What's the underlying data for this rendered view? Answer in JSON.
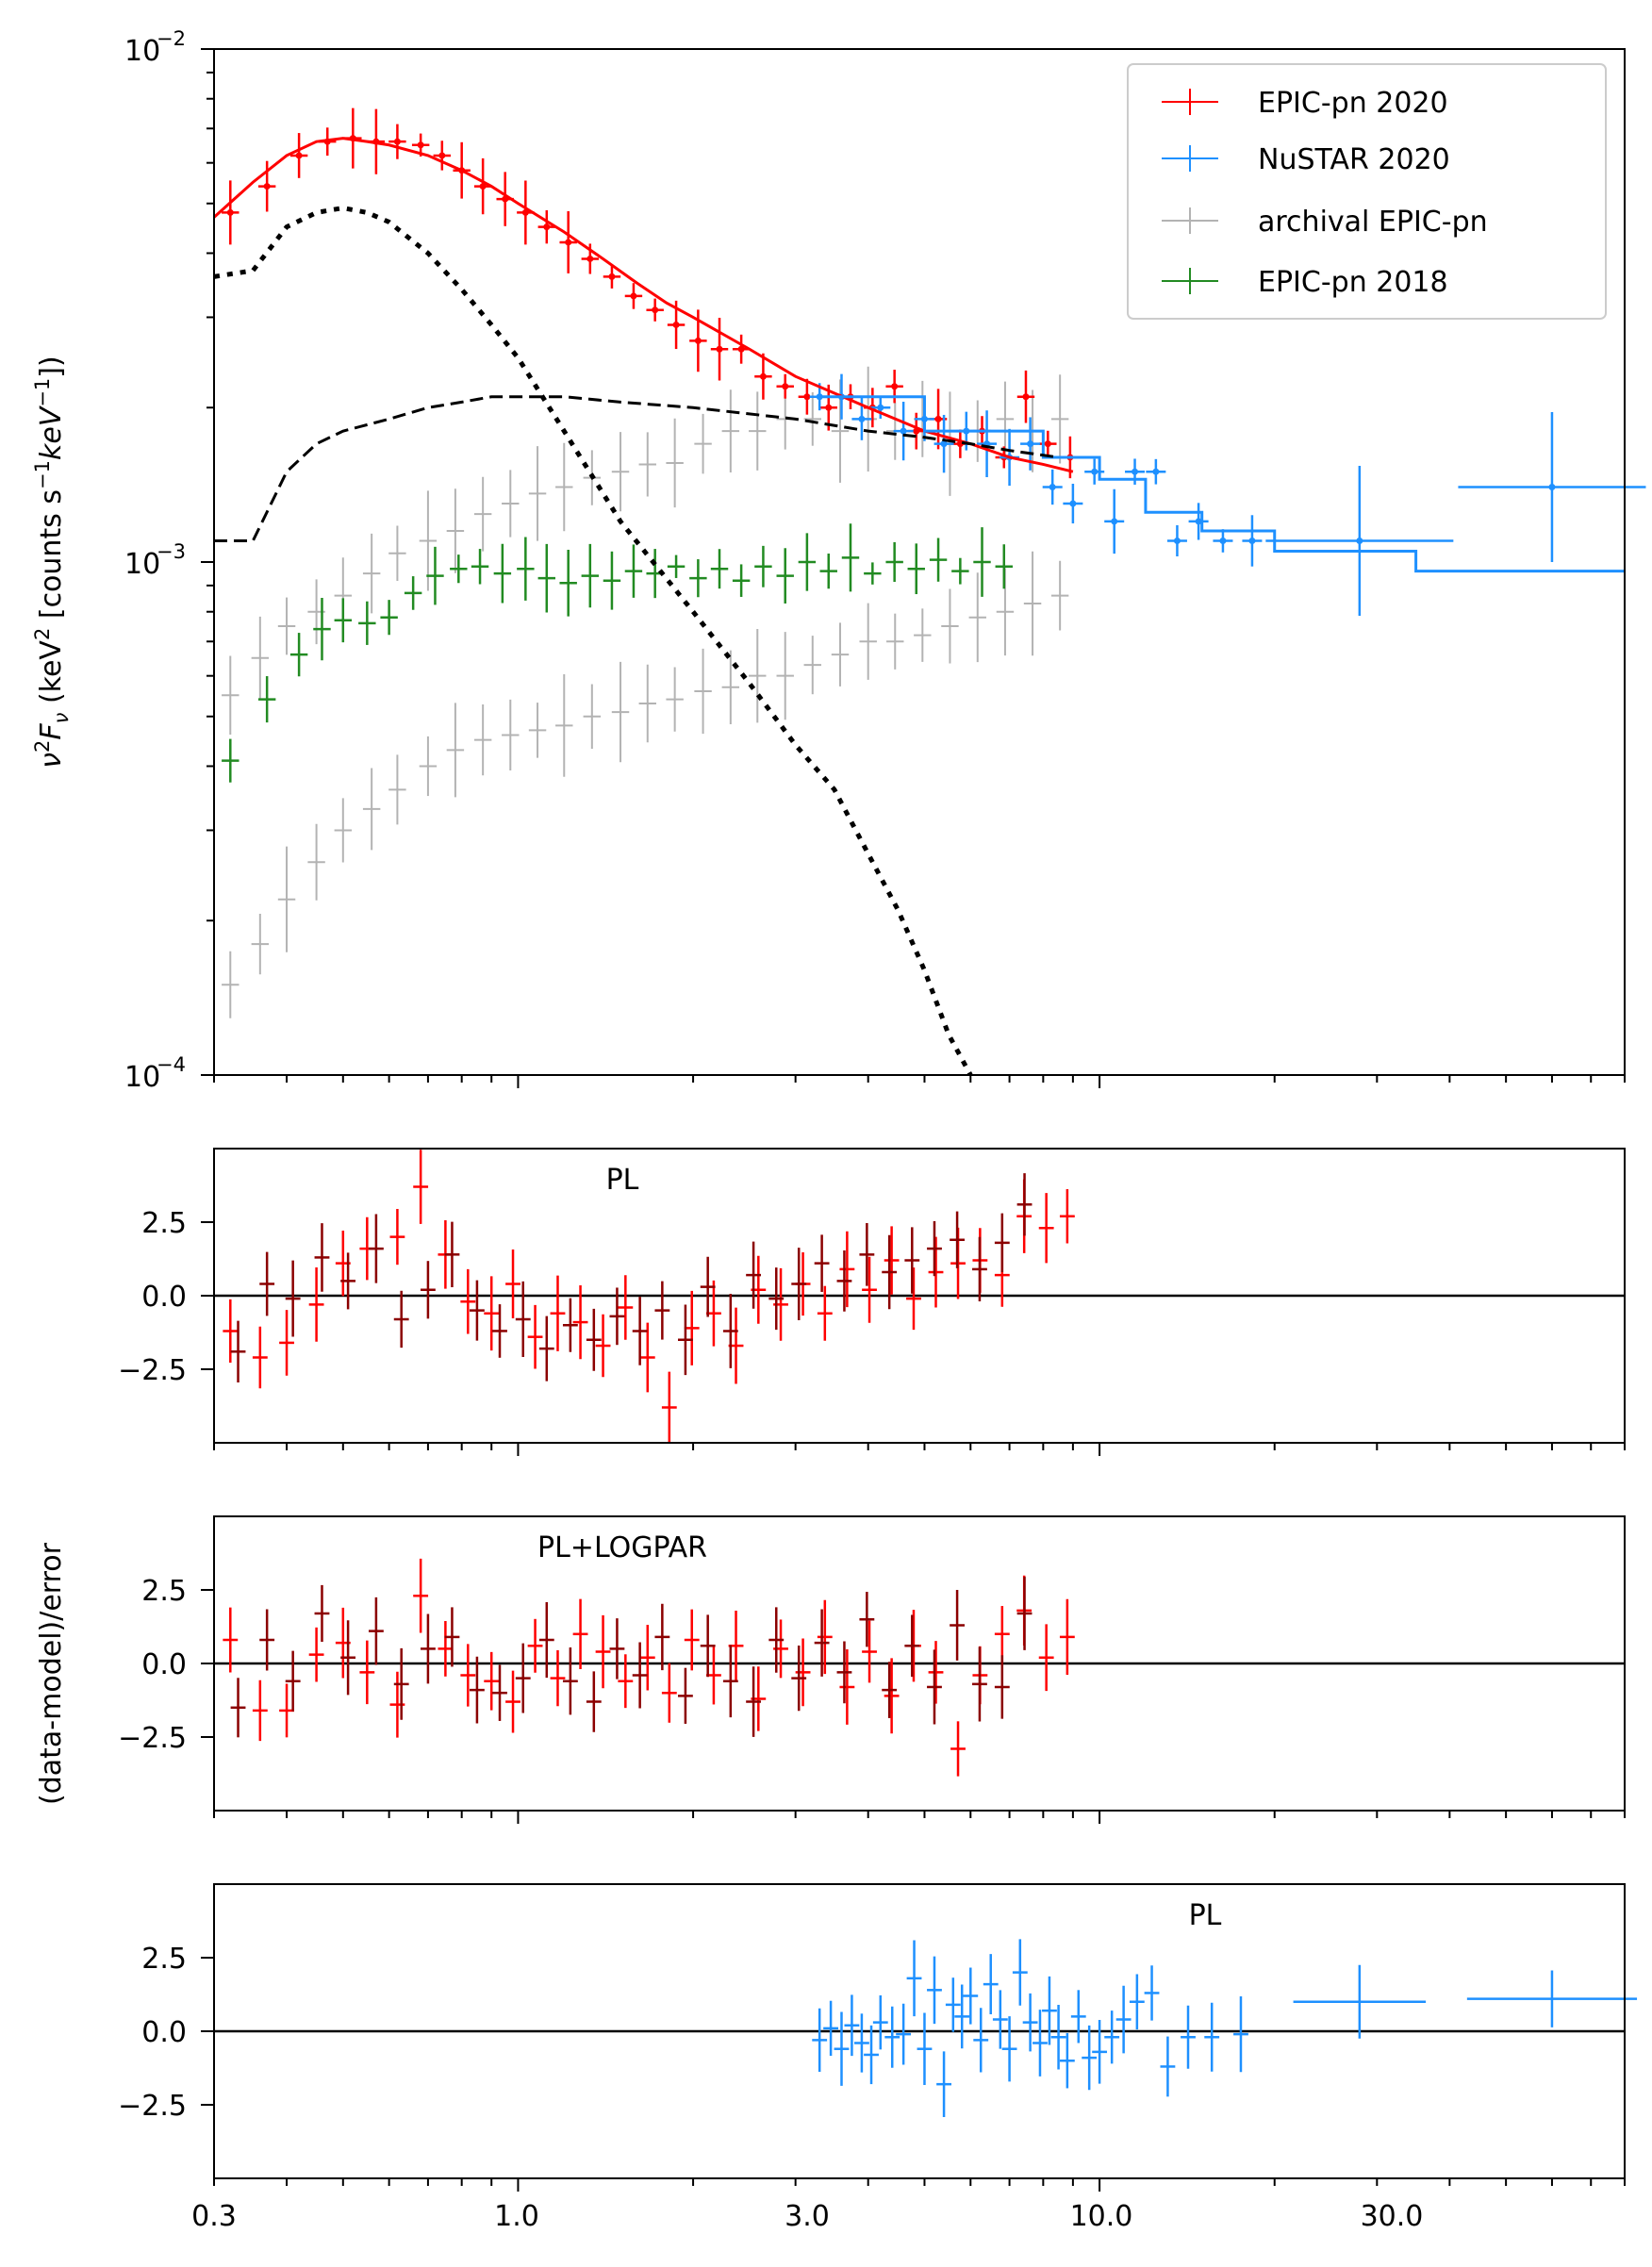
{
  "chart_data": [
    {
      "id": "spectrum",
      "type": "scatter",
      "xscale": "log",
      "yscale": "log",
      "xlim": [
        0.3,
        80
      ],
      "ylim": [
        0.0001,
        0.01
      ],
      "xlabel": "",
      "ylabel_parts": [
        "ν",
        "2",
        "F",
        "ν",
        " (keV",
        "2",
        " [counts s",
        "−1",
        "keV",
        "−1",
        "])"
      ],
      "y_ticks": [
        {
          "value": 0.01,
          "base": "10",
          "exp": "−2"
        },
        {
          "value": 0.001,
          "base": "10",
          "exp": "−3"
        },
        {
          "value": 0.0001,
          "base": "10",
          "exp": "−4"
        }
      ],
      "legend": {
        "position": "top-right",
        "entries": [
          {
            "label": "EPIC-pn 2020",
            "color": "#ff0000"
          },
          {
            "label": "NuSTAR 2020",
            "color": "#1e90ff"
          },
          {
            "label": "archival EPIC-pn",
            "color": "#b3b3b3"
          },
          {
            "label": "EPIC-pn 2018",
            "color": "#228b22"
          }
        ]
      },
      "series": [
        {
          "name": "EPIC-pn 2020",
          "color": "#ff0000",
          "x": [
            0.32,
            0.37,
            0.42,
            0.47,
            0.52,
            0.57,
            0.62,
            0.68,
            0.74,
            0.8,
            0.87,
            0.95,
            1.03,
            1.12,
            1.22,
            1.33,
            1.45,
            1.58,
            1.72,
            1.87,
            2.04,
            2.22,
            2.42,
            2.64,
            2.88,
            3.14,
            3.42,
            3.73,
            4.07,
            4.44,
            4.84,
            5.28,
            5.76,
            6.28,
            6.85,
            7.47,
            8.15,
            8.9
          ],
          "y": [
            0.0048,
            0.0054,
            0.0062,
            0.0066,
            0.0067,
            0.0066,
            0.0066,
            0.0065,
            0.0062,
            0.0058,
            0.0054,
            0.0051,
            0.0048,
            0.0045,
            0.0042,
            0.0039,
            0.0036,
            0.0033,
            0.0031,
            0.0029,
            0.0027,
            0.0026,
            0.0026,
            0.0023,
            0.0022,
            0.0021,
            0.002,
            0.0021,
            0.002,
            0.0022,
            0.0018,
            0.0019,
            0.0017,
            0.0018,
            0.0016,
            0.0021,
            0.0017,
            0.0016
          ]
        },
        {
          "name": "NuSTAR 2020",
          "color": "#1e90ff",
          "x": [
            3.3,
            3.6,
            3.9,
            4.2,
            4.6,
            5.0,
            5.4,
            5.9,
            6.4,
            7.0,
            7.6,
            8.3,
            9.0,
            9.8,
            10.6,
            11.5,
            12.5,
            13.6,
            14.8,
            16.3,
            18.3,
            28,
            60
          ],
          "y": [
            0.0021,
            0.0021,
            0.0019,
            0.002,
            0.0018,
            0.0019,
            0.0017,
            0.0018,
            0.0017,
            0.0016,
            0.0017,
            0.0014,
            0.0013,
            0.0015,
            0.0012,
            0.0015,
            0.0015,
            0.0011,
            0.0012,
            0.0011,
            0.0011,
            0.0011,
            0.0014
          ]
        },
        {
          "name": "archival EPIC-pn",
          "color": "#b3b3b3",
          "x": [
            0.32,
            0.36,
            0.4,
            0.45,
            0.5,
            0.56,
            0.62,
            0.7,
            0.78,
            0.87,
            0.97,
            1.08,
            1.2,
            1.34,
            1.5,
            1.67,
            1.86,
            2.08,
            2.32,
            2.58,
            2.88,
            3.21,
            3.58,
            4.0,
            4.45,
            4.96,
            5.53,
            6.17,
            6.88,
            7.67,
            8.55,
            0.32,
            0.36,
            0.4,
            0.45,
            0.5,
            0.56,
            0.62,
            0.7,
            0.78,
            0.87,
            0.97,
            1.08,
            1.2,
            1.34,
            1.5,
            1.67,
            1.86,
            2.08,
            2.32,
            2.58,
            2.88,
            3.21,
            3.58,
            4.0,
            4.45,
            4.96,
            5.53,
            6.17,
            6.88,
            7.67,
            8.55
          ],
          "y": [
            0.00055,
            0.00065,
            0.00075,
            0.0008,
            0.00086,
            0.00095,
            0.00104,
            0.0011,
            0.00115,
            0.00124,
            0.0013,
            0.00136,
            0.0014,
            0.00146,
            0.0015,
            0.00155,
            0.00156,
            0.0017,
            0.0018,
            0.0018,
            0.0019,
            0.0019,
            0.0018,
            0.0019,
            0.0018,
            0.0019,
            0.0017,
            0.0018,
            0.0019,
            0.0018,
            0.0019,
            0.00015,
            0.00018,
            0.00022,
            0.00026,
            0.0003,
            0.00033,
            0.00036,
            0.0004,
            0.00043,
            0.00045,
            0.00046,
            0.00047,
            0.00048,
            0.0005,
            0.00051,
            0.00053,
            0.00054,
            0.00056,
            0.00057,
            0.0006,
            0.0006,
            0.00063,
            0.00066,
            0.0007,
            0.0007,
            0.00072,
            0.00075,
            0.00078,
            0.0008,
            0.00083,
            0.00086
          ]
        },
        {
          "name": "EPIC-pn 2018",
          "color": "#228b22",
          "x": [
            0.32,
            0.37,
            0.42,
            0.46,
            0.5,
            0.55,
            0.6,
            0.66,
            0.72,
            0.79,
            0.86,
            0.94,
            1.03,
            1.12,
            1.22,
            1.33,
            1.45,
            1.58,
            1.72,
            1.87,
            2.04,
            2.22,
            2.42,
            2.64,
            2.88,
            3.14,
            3.42,
            3.73,
            4.07,
            4.44,
            4.84,
            5.28,
            5.76,
            6.28,
            6.85
          ],
          "y": [
            0.00041,
            0.00054,
            0.00066,
            0.00074,
            0.00077,
            0.00076,
            0.00078,
            0.00087,
            0.00094,
            0.00097,
            0.00098,
            0.00095,
            0.00097,
            0.00093,
            0.00091,
            0.00094,
            0.00092,
            0.00096,
            0.00095,
            0.00098,
            0.00093,
            0.00097,
            0.00092,
            0.00098,
            0.00094,
            0.001,
            0.00096,
            0.00102,
            0.00095,
            0.001,
            0.00097,
            0.00101,
            0.00096,
            0.001,
            0.00098
          ]
        }
      ],
      "models": [
        {
          "name": "total model (EPIC-pn)",
          "style": "solid",
          "color": "#ff0000",
          "x": [
            0.3,
            0.35,
            0.4,
            0.45,
            0.5,
            0.55,
            0.6,
            0.7,
            0.8,
            0.9,
            1.0,
            1.2,
            1.4,
            1.6,
            1.8,
            2.0,
            2.5,
            3.0,
            4.0,
            5.0,
            6.0,
            7.0,
            8.0,
            9.0
          ],
          "y": [
            0.0047,
            0.0055,
            0.0062,
            0.0066,
            0.0067,
            0.0066,
            0.0065,
            0.0062,
            0.0058,
            0.0054,
            0.005,
            0.0044,
            0.0039,
            0.0035,
            0.0032,
            0.003,
            0.0026,
            0.0023,
            0.002,
            0.0018,
            0.0017,
            0.0016,
            0.00155,
            0.0015
          ]
        },
        {
          "name": "total model (NuSTAR)",
          "style": "step",
          "color": "#1e90ff",
          "x": [
            3.3,
            5.0,
            8.0,
            10.0,
            12.0,
            15.0,
            20.0,
            35.0,
            80.0
          ],
          "y": [
            0.0021,
            0.0018,
            0.0016,
            0.00145,
            0.00125,
            0.00115,
            0.00105,
            0.00096,
            0.00075
          ]
        },
        {
          "name": "power-law component",
          "style": "dashed",
          "color": "#000000",
          "x": [
            0.3,
            0.35,
            0.4,
            0.45,
            0.5,
            0.6,
            0.7,
            0.8,
            0.9,
            1.0,
            1.2,
            1.5,
            2.0,
            3.0,
            4.0,
            5.0,
            6.0,
            7.0,
            8.5
          ],
          "y": [
            0.0011,
            0.0011,
            0.0015,
            0.0017,
            0.0018,
            0.0019,
            0.002,
            0.00205,
            0.0021,
            0.0021,
            0.0021,
            0.00205,
            0.002,
            0.0019,
            0.0018,
            0.00175,
            0.0017,
            0.00165,
            0.0016
          ]
        },
        {
          "name": "logpar component",
          "style": "dotted",
          "color": "#000000",
          "x": [
            0.3,
            0.35,
            0.4,
            0.45,
            0.5,
            0.55,
            0.6,
            0.7,
            0.8,
            0.9,
            1.0,
            1.2,
            1.5,
            2.0,
            2.5,
            3.0,
            3.5,
            4.0,
            4.5,
            5.0,
            5.5,
            6.0
          ],
          "y": [
            0.0036,
            0.0037,
            0.0045,
            0.0048,
            0.0049,
            0.0048,
            0.0046,
            0.004,
            0.0034,
            0.0029,
            0.0025,
            0.0018,
            0.0012,
            0.0008,
            0.00058,
            0.00044,
            0.00036,
            0.00027,
            0.00021,
            0.00016,
            0.00012,
            0.0001
          ]
        }
      ]
    },
    {
      "id": "resid-pl",
      "type": "scatter",
      "annotation": "PL",
      "xlim": [
        0.3,
        80
      ],
      "ylim": [
        -5,
        5
      ],
      "y_ticks": [
        "2.5",
        "0.0",
        "−2.5"
      ],
      "series": [
        {
          "name": "EPIC-pn 2020 residuals",
          "color": "#ff0000",
          "x": [
            0.32,
            0.36,
            0.4,
            0.45,
            0.5,
            0.55,
            0.62,
            0.68,
            0.75,
            0.82,
            0.9,
            0.98,
            1.07,
            1.17,
            1.28,
            1.4,
            1.53,
            1.67,
            1.82,
            1.99,
            2.17,
            2.37,
            2.59,
            2.83,
            3.09,
            3.37,
            3.68,
            4.02,
            4.39,
            4.79,
            5.23,
            5.71,
            6.23,
            6.8,
            7.42,
            8.1,
            8.8
          ],
          "y": [
            -1.2,
            -2.1,
            -1.6,
            -0.3,
            1.1,
            1.6,
            2.0,
            3.7,
            1.4,
            -0.2,
            -0.6,
            0.4,
            -1.4,
            -0.6,
            -0.9,
            -1.7,
            -0.4,
            -2.1,
            -3.8,
            -1.1,
            -0.6,
            -1.7,
            0.2,
            -0.3,
            0.4,
            -0.6,
            0.9,
            0.2,
            1.2,
            -0.1,
            0.8,
            1.1,
            1.2,
            0.7,
            2.7,
            2.3,
            2.7
          ]
        },
        {
          "name": "EPIC-pn 2018 residuals",
          "color": "#8b0000",
          "x": [
            0.33,
            0.37,
            0.41,
            0.46,
            0.51,
            0.57,
            0.63,
            0.7,
            0.77,
            0.85,
            0.93,
            1.02,
            1.12,
            1.23,
            1.35,
            1.48,
            1.62,
            1.77,
            1.94,
            2.12,
            2.32,
            2.54,
            2.78,
            3.04,
            3.33,
            3.64,
            3.98,
            4.35,
            4.76,
            5.2,
            5.69,
            6.22,
            6.8,
            7.43
          ],
          "y": [
            -1.9,
            0.4,
            -0.1,
            1.3,
            0.5,
            1.6,
            -0.8,
            0.2,
            1.4,
            -0.5,
            -1.2,
            -0.8,
            -1.8,
            -1.0,
            -1.5,
            -0.7,
            -1.2,
            -0.5,
            -1.5,
            0.3,
            -1.2,
            0.7,
            -0.1,
            0.4,
            1.1,
            0.5,
            1.4,
            0.8,
            1.2,
            1.6,
            1.9,
            0.9,
            1.8,
            3.1
          ]
        }
      ]
    },
    {
      "id": "resid-pl-logpar",
      "type": "scatter",
      "annotation": "PL+LOGPAR",
      "ylabel": "(data-model)/error",
      "xlim": [
        0.3,
        80
      ],
      "ylim": [
        -5,
        5
      ],
      "y_ticks": [
        "2.5",
        "0.0",
        "−2.5"
      ],
      "series": [
        {
          "name": "EPIC-pn 2020 residuals",
          "color": "#ff0000",
          "x": [
            0.32,
            0.36,
            0.4,
            0.45,
            0.5,
            0.55,
            0.62,
            0.68,
            0.75,
            0.82,
            0.9,
            0.98,
            1.07,
            1.17,
            1.28,
            1.4,
            1.53,
            1.67,
            1.82,
            1.99,
            2.17,
            2.37,
            2.59,
            2.83,
            3.09,
            3.37,
            3.68,
            4.02,
            4.39,
            4.79,
            5.23,
            5.71,
            6.23,
            6.8,
            7.42,
            8.1,
            8.8
          ],
          "y": [
            0.8,
            -1.6,
            -1.6,
            0.3,
            0.7,
            -0.3,
            -1.4,
            2.3,
            0.5,
            -0.4,
            -0.6,
            -1.3,
            0.6,
            -0.5,
            1.0,
            0.4,
            -0.6,
            0.2,
            -1.0,
            0.8,
            -0.4,
            0.6,
            -1.2,
            0.5,
            -0.3,
            0.9,
            -0.8,
            0.4,
            -1.1,
            0.6,
            -0.3,
            -2.9,
            -0.4,
            1.0,
            1.8,
            0.2,
            0.9
          ]
        },
        {
          "name": "EPIC-pn 2018 residuals",
          "color": "#8b0000",
          "x": [
            0.33,
            0.37,
            0.41,
            0.46,
            0.51,
            0.57,
            0.63,
            0.7,
            0.77,
            0.85,
            0.93,
            1.02,
            1.12,
            1.23,
            1.35,
            1.48,
            1.62,
            1.77,
            1.94,
            2.12,
            2.32,
            2.54,
            2.78,
            3.04,
            3.33,
            3.64,
            3.98,
            4.35,
            4.76,
            5.2,
            5.69,
            6.22,
            6.8,
            7.43
          ],
          "y": [
            -1.5,
            0.8,
            -0.6,
            1.7,
            0.2,
            1.1,
            -0.7,
            0.5,
            0.9,
            -0.9,
            -1.0,
            -0.5,
            0.8,
            -0.6,
            -1.3,
            0.5,
            -0.4,
            0.9,
            -1.1,
            0.6,
            -0.6,
            -1.3,
            0.8,
            -0.5,
            0.7,
            -0.3,
            1.5,
            -0.9,
            0.6,
            -0.8,
            1.3,
            -0.7,
            -0.8,
            1.7
          ]
        }
      ]
    },
    {
      "id": "resid-nustar",
      "type": "scatter",
      "annotation": "PL",
      "xlim": [
        0.3,
        80
      ],
      "ylim": [
        -5,
        5
      ],
      "y_ticks": [
        "2.5",
        "0.0",
        "−2.5"
      ],
      "x_ticks": [
        "0.3",
        "1.0",
        "3.0",
        "10.0",
        "30.0"
      ],
      "x_tick_values": [
        0.3,
        1.0,
        3.0,
        10.0,
        30.0
      ],
      "series": [
        {
          "name": "NuSTAR 2020 residuals",
          "color": "#1e90ff",
          "x": [
            3.3,
            3.45,
            3.6,
            3.75,
            3.9,
            4.05,
            4.2,
            4.4,
            4.6,
            4.8,
            5.0,
            5.2,
            5.4,
            5.6,
            5.8,
            6.0,
            6.25,
            6.5,
            6.75,
            7.0,
            7.3,
            7.6,
            7.9,
            8.2,
            8.5,
            8.8,
            9.2,
            9.6,
            10.0,
            10.5,
            11.0,
            11.6,
            12.3,
            13.1,
            14.2,
            15.6,
            17.5,
            28.0,
            60.0
          ],
          "y": [
            -0.3,
            0.1,
            -0.6,
            0.2,
            -0.4,
            -0.8,
            0.3,
            -0.2,
            -0.1,
            1.8,
            -0.6,
            1.4,
            -1.8,
            0.9,
            0.5,
            1.2,
            -0.3,
            1.6,
            0.4,
            -0.6,
            2.0,
            0.3,
            -0.4,
            0.7,
            -0.2,
            -1.0,
            0.5,
            -0.9,
            -0.7,
            -0.2,
            0.4,
            1.0,
            1.3,
            -1.2,
            -0.2,
            -0.2,
            -0.1,
            1.0,
            1.1
          ]
        }
      ]
    }
  ]
}
